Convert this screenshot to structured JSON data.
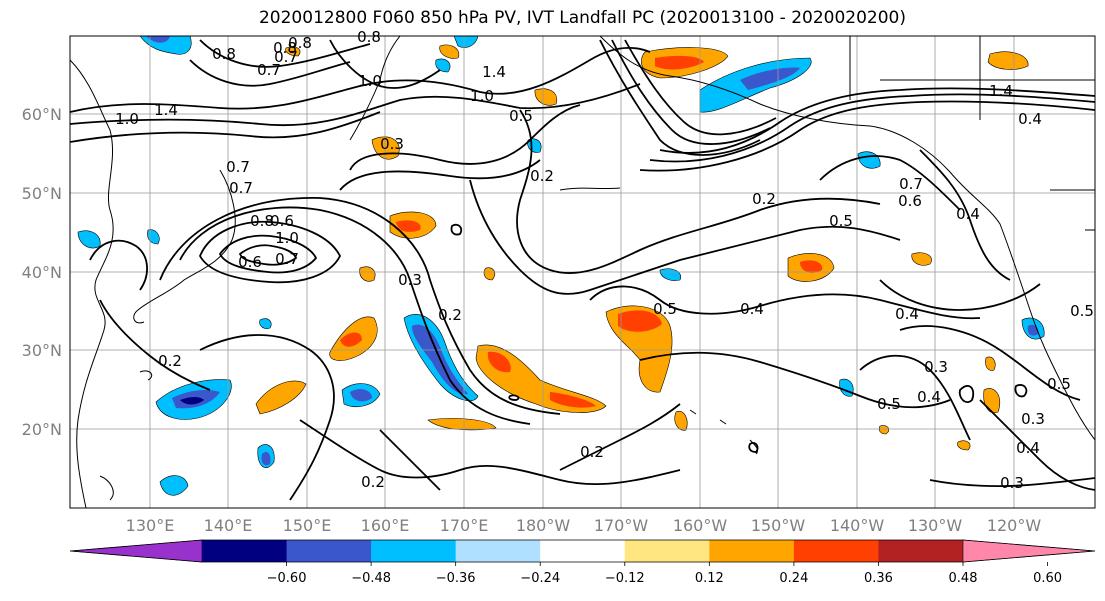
{
  "title": "2020012800 F060 850 hPa PV, IVT Landfall PC (2020013100 - 2020020200)",
  "lat_labels": [
    "60°N",
    "50°N",
    "40°N",
    "30°N",
    "20°N"
  ],
  "lon_labels": [
    "130°E",
    "140°E",
    "150°E",
    "160°E",
    "170°E",
    "180°W",
    "170°W",
    "160°W",
    "150°W",
    "140°W",
    "130°W",
    "120°W"
  ],
  "colorbar": {
    "colors": [
      "#9932cc",
      "#000080",
      "#3a58cc",
      "#00bfff",
      "#b0e0ff",
      "#ffffff",
      "#ffe680",
      "#ffa500",
      "#ff4000",
      "#b22222",
      "#ff88aa"
    ],
    "tick_labels": [
      "−0.60",
      "−0.48",
      "−0.36",
      "−0.24",
      "−0.12",
      "0.12",
      "0.24",
      "0.36",
      "0.48",
      "0.60"
    ]
  },
  "contour_labels": [
    "0.8",
    "0.7",
    "0.8",
    "0.7",
    "1.0",
    "1.4",
    "1.4",
    "1.0",
    "1.0",
    "0.8",
    "0.7",
    "0.8",
    "0.6",
    "0.7",
    "0.2",
    "0.3",
    "0.5",
    "0.4",
    "1.4",
    "0.4",
    "0.2",
    "0.5",
    "0.7",
    "0.6",
    "0.4",
    "0.3",
    "0.2",
    "0.5",
    "0.4",
    "0.5",
    "0.4",
    "0.3",
    "0.5",
    "0.4",
    "0.3",
    "0.2",
    "0.2",
    "0.2",
    "0.3",
    "0.6",
    "0.7",
    "1.0",
    "0.8",
    "0.5"
  ]
}
